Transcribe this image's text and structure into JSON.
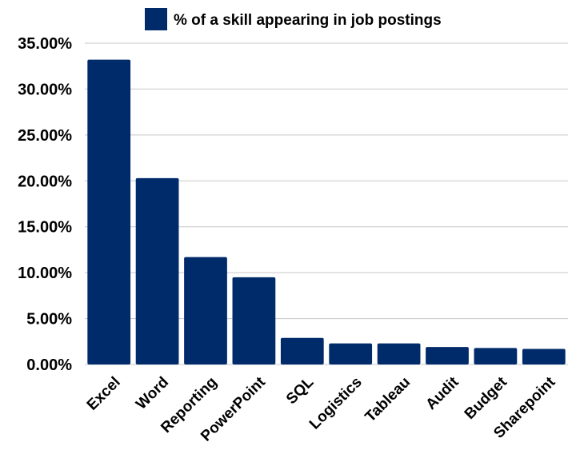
{
  "chart_data": {
    "type": "bar",
    "title": "",
    "xlabel": "",
    "ylabel": "",
    "categories": [
      "Excel",
      "Word",
      "Reporting",
      "PowerPoint",
      "SQL",
      "Logistics",
      "Tableau",
      "Audit",
      "Budget",
      "Sharepoint"
    ],
    "series": [
      {
        "name": "% of a skill appearing in job postings",
        "values": [
          33.2,
          20.3,
          11.7,
          9.5,
          2.9,
          2.3,
          2.3,
          1.9,
          1.8,
          1.7
        ],
        "color": "#002b6b"
      }
    ],
    "ylim": [
      0,
      35
    ],
    "yticks": [
      0,
      5,
      10,
      15,
      20,
      25,
      30,
      35
    ],
    "ytick_labels": [
      "0.00%",
      "5.00%",
      "10.00%",
      "15.00%",
      "20.00%",
      "25.00%",
      "30.00%",
      "35.00%"
    ],
    "grid": true,
    "legend_position": "top"
  }
}
